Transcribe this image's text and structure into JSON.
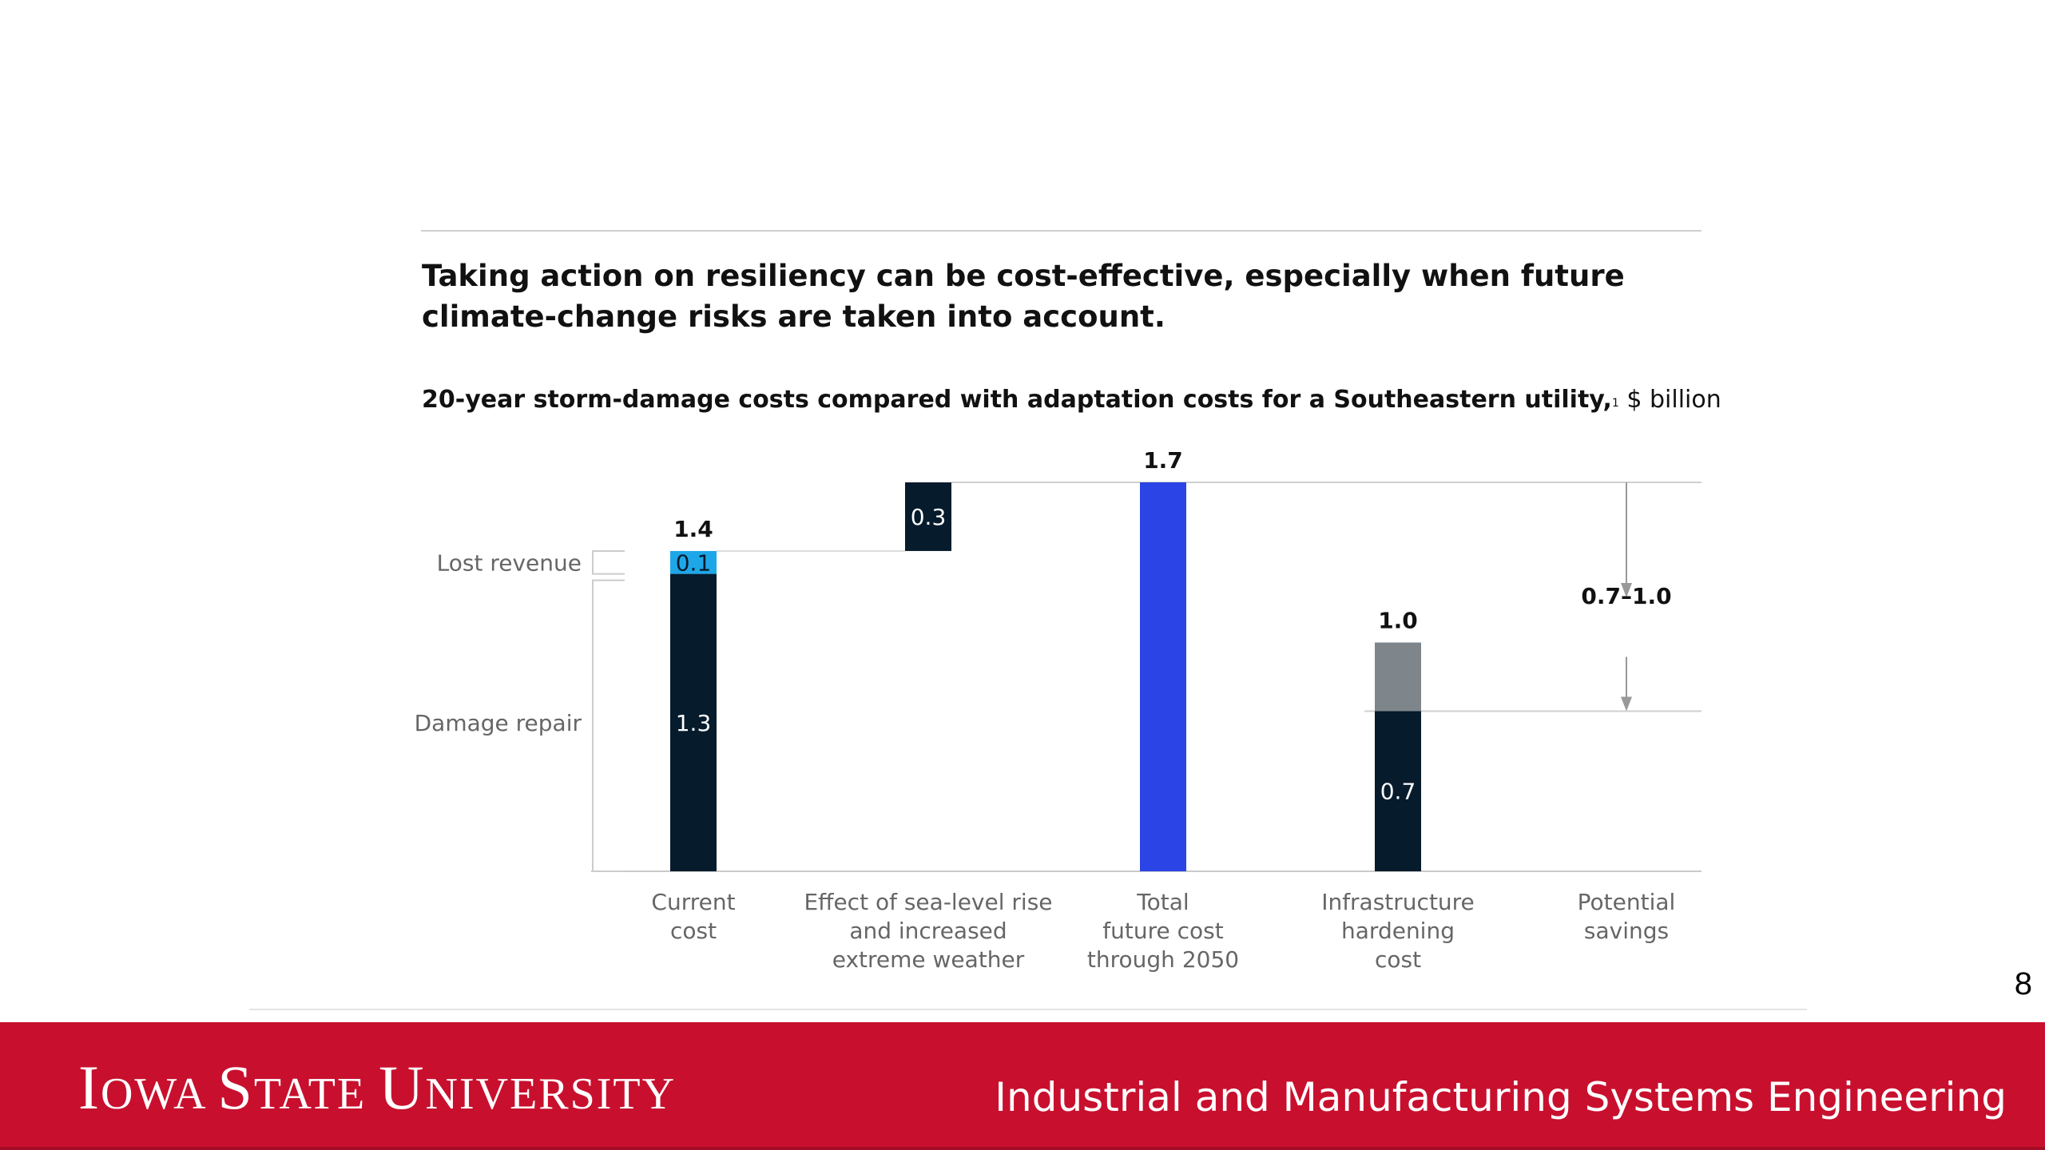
{
  "slide": {
    "title": "Taking action on resiliency can be cost-effective, especially when future climate-change risks are taken into account.",
    "subtitle_bold": "20-year storm-damage costs compared with adaptation costs for a Southeastern utility,",
    "subtitle_footnote": "1",
    "subtitle_unit": " $ billion",
    "page_number": "8"
  },
  "footer": {
    "logo_text": "IOWA STATE UNIVERSITY",
    "department": "Industrial and Manufacturing Systems Engineering",
    "colors": {
      "background": "#c8102e",
      "text": "#ffffff"
    }
  },
  "chart_data": {
    "type": "bar",
    "subtype": "waterfall",
    "title": "Taking action on resiliency can be cost-effective, especially when future climate-change risks are taken into account.",
    "subtitle": "20-year storm-damage costs compared with adaptation costs for a Southeastern utility,1 $ billion",
    "unit": "$ billion",
    "categories": [
      [
        "Current",
        "cost"
      ],
      [
        "Effect of sea-level rise",
        "and increased",
        "extreme weather"
      ],
      [
        "Total",
        "future cost",
        "through 2050"
      ],
      [
        "Infrastructure",
        "hardening",
        "cost"
      ],
      [
        "Potential",
        "savings"
      ]
    ],
    "ylim": [
      0,
      1.7
    ],
    "grid": false,
    "side_labels": [
      "Lost revenue",
      "Damage repair"
    ],
    "segments": [
      {
        "category": 0,
        "start": 0,
        "end": 1.3,
        "color": "#061b2c",
        "label": "1.3"
      },
      {
        "category": 0,
        "start": 1.3,
        "end": 1.4,
        "color": "#1ea7e8",
        "label": "0.1"
      },
      {
        "category": 1,
        "start": 1.4,
        "end": 1.7,
        "color": "#061b2c",
        "label": "0.3"
      },
      {
        "category": 2,
        "start": 0,
        "end": 1.7,
        "color": "#2a44e6",
        "label": ""
      },
      {
        "category": 3,
        "start": 0,
        "end": 0.7,
        "color": "#061b2c",
        "label": "0.7"
      },
      {
        "category": 3,
        "start": 0.7,
        "end": 1.0,
        "color": "#7f868b",
        "label": ""
      }
    ],
    "totals": [
      {
        "category": 0,
        "value": 1.4,
        "label": "1.4"
      },
      {
        "category": 2,
        "value": 1.7,
        "label": "1.7"
      },
      {
        "category": 3,
        "value": 1.0,
        "label": "1.0"
      }
    ],
    "savings": {
      "category": 4,
      "from": 1.7,
      "to": 0.7,
      "label": "0.7–1.0"
    }
  }
}
